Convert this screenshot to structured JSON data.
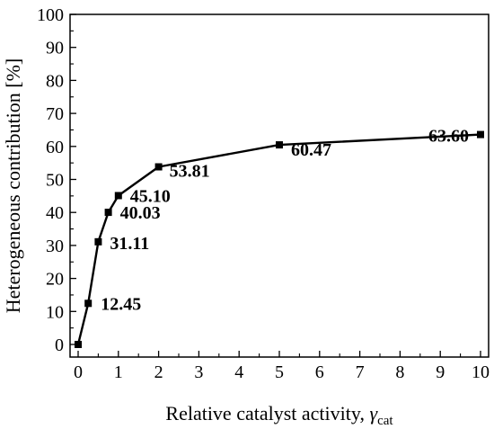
{
  "chart_data": {
    "type": "line",
    "title": "",
    "xlabel_main": "Relative catalyst activity, ",
    "xlabel_symbol": "γ",
    "xlabel_subscript": "cat",
    "ylabel": "Heterogeneous contribution [%]",
    "xlim": [
      0,
      10
    ],
    "ylim": [
      0,
      100
    ],
    "x_ticks": [
      0,
      1,
      2,
      3,
      4,
      5,
      6,
      7,
      8,
      9,
      10
    ],
    "y_ticks": [
      0,
      10,
      20,
      30,
      40,
      50,
      60,
      70,
      80,
      90,
      100
    ],
    "grid": false,
    "legend": "none",
    "marker": "square",
    "series_color": "#000000",
    "series": [
      {
        "x": [
          0,
          0.25,
          0.5,
          0.75,
          1,
          2,
          5,
          10
        ],
        "values": [
          0,
          12.45,
          31.11,
          40.03,
          45.1,
          53.81,
          60.47,
          63.6
        ],
        "labels": [
          "",
          "12.45",
          "31.11",
          "40.03",
          "45.10",
          "53.81",
          "60.47",
          "63.60"
        ]
      }
    ]
  }
}
